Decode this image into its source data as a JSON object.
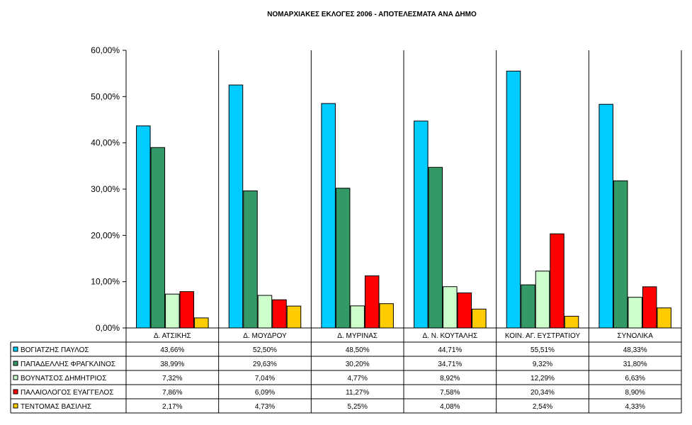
{
  "chart_data": {
    "type": "bar",
    "title": "ΝΟΜΑΡΧΙΑΚΕΣ ΕΚΛΟΓΕΣ 2006 - ΑΠΟΤΕΛΕΣΜΑΤΑ ΑΝΑ ΔΗΜΟ",
    "categories": [
      "Δ. ΑΤΣΙΚΗΣ",
      "Δ. ΜΟΥΔΡΟΥ",
      "Δ. ΜΥΡΙΝΑΣ",
      "Δ. Ν. ΚΟΥΤΑΛΗΣ",
      "ΚΟΙΝ. ΑΓ. ΕΥΣΤΡΑΤΙΟΥ",
      "ΣΥΝΟΛΙΚΑ"
    ],
    "ylim": [
      0,
      60
    ],
    "yticks": [
      0,
      10,
      20,
      30,
      40,
      50,
      60
    ],
    "ytick_labels": [
      "0,00%",
      "10,00%",
      "20,00%",
      "30,00%",
      "40,00%",
      "50,00%",
      "60,00%"
    ],
    "grid": false,
    "legend": "data-table",
    "series": [
      {
        "name": "ΒΟΓΙΑΤΖΗΣ ΠΑΥΛΟΣ",
        "color": "#00CCFF",
        "values": [
          43.66,
          52.5,
          48.5,
          44.71,
          55.51,
          48.33
        ],
        "labels": [
          "43,66%",
          "52,50%",
          "48,50%",
          "44,71%",
          "55,51%",
          "48,33%"
        ]
      },
      {
        "name": "ΠΑΠΑΔΕΛΛΗΣ ΦΡΑΓΚΛΙΝΟΣ",
        "color": "#339966",
        "values": [
          38.99,
          29.63,
          30.2,
          34.71,
          9.32,
          31.8
        ],
        "labels": [
          "38,99%",
          "29,63%",
          "30,20%",
          "34,71%",
          "9,32%",
          "31,80%"
        ]
      },
      {
        "name": "ΒΟΥΝΑΤΣΟΣ ΔΗΜΗΤΡΙΟΣ",
        "color": "#CCFFCC",
        "values": [
          7.32,
          7.04,
          4.77,
          8.92,
          12.29,
          6.63
        ],
        "labels": [
          "7,32%",
          "7,04%",
          "4,77%",
          "8,92%",
          "12,29%",
          "6,63%"
        ]
      },
      {
        "name": "ΠΑΛΑΙΟΛΟΓΟΣ ΕΥΑΓΓΕΛΟΣ",
        "color": "#FF0000",
        "values": [
          7.86,
          6.09,
          11.27,
          7.58,
          20.34,
          8.9
        ],
        "labels": [
          "7,86%",
          "6,09%",
          "11,27%",
          "7,58%",
          "20,34%",
          "8,90%"
        ]
      },
      {
        "name": "ΤΕΝΤΟΜΑΣ ΒΑΣΙΛΗΣ",
        "color": "#FFCC00",
        "values": [
          2.17,
          4.73,
          5.25,
          4.08,
          2.54,
          4.33
        ],
        "labels": [
          "2,17%",
          "4,73%",
          "5,25%",
          "4,08%",
          "2,54%",
          "4,33%"
        ]
      }
    ]
  }
}
